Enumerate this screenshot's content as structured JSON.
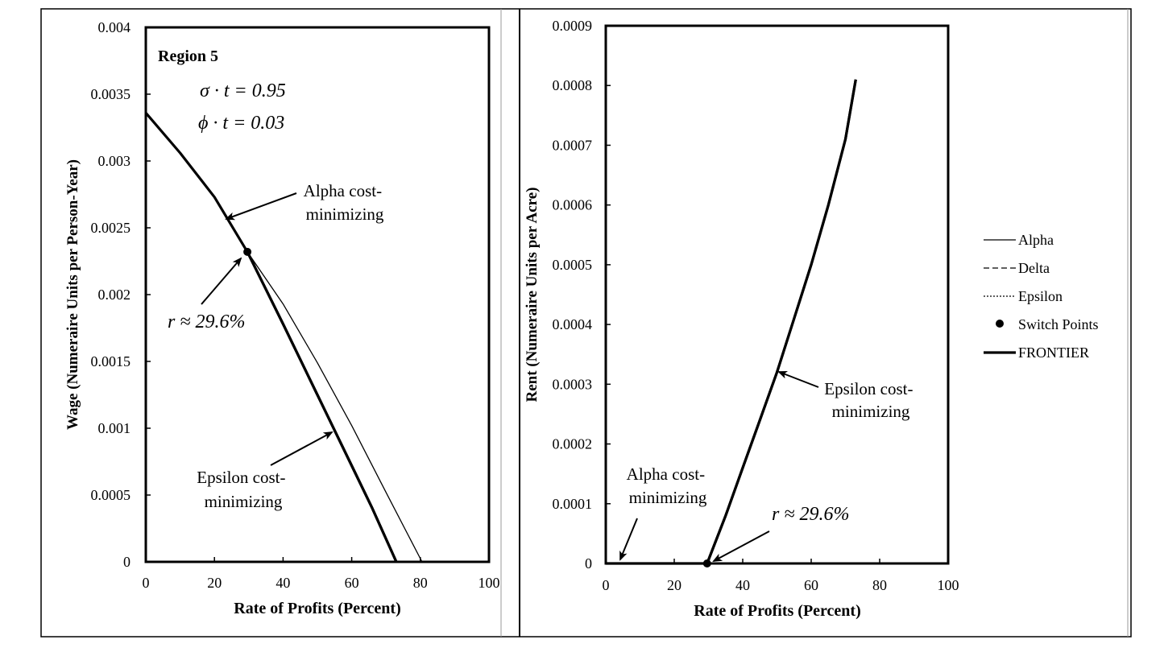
{
  "chart_data": [
    {
      "type": "line",
      "panel": "left",
      "xlabel": "Rate of Profits (Percent)",
      "ylabel": "Wage (Numeraire Units per Person-Year)",
      "xlim": [
        0,
        100
      ],
      "ylim": [
        0,
        0.004
      ],
      "x_ticks": [
        0,
        20,
        40,
        60,
        80,
        100
      ],
      "x_tick_labels": [
        "0",
        "20",
        "40",
        "60",
        "80",
        "100"
      ],
      "y_ticks": [
        0,
        0.0005,
        0.001,
        0.0015,
        0.002,
        0.0025,
        0.003,
        0.0035,
        0.004
      ],
      "y_tick_labels": [
        "0",
        "0.0005",
        "0.001",
        "0.0015",
        "0.002",
        "0.0025",
        "0.003",
        "0.0035",
        "0.004"
      ],
      "grid": false,
      "series": [
        {
          "name": "Alpha",
          "style": "thin-solid",
          "x": [
            0,
            10,
            20,
            29.6,
            40,
            50,
            60,
            70,
            80.5
          ],
          "y": [
            0.00336,
            0.00306,
            0.00273,
            0.00232,
            0.00193,
            0.00149,
            0.00102,
            0.00052,
            0
          ]
        },
        {
          "name": "Epsilon",
          "style": "thick-solid",
          "x": [
            29.6,
            40,
            50,
            60,
            66,
            73
          ],
          "y": [
            0.00232,
            0.00178,
            0.00125,
            0.00072,
            0.0004,
            0
          ]
        },
        {
          "name": "FRONTIER",
          "style": "thick-solid",
          "x": [
            0,
            10,
            20,
            29.6,
            40,
            50,
            60,
            66,
            73
          ],
          "y": [
            0.00336,
            0.00306,
            0.00273,
            0.00232,
            0.00178,
            0.00125,
            0.00072,
            0.0004,
            0
          ]
        }
      ],
      "switch_points": [
        {
          "x": 29.6,
          "y": 0.00232
        }
      ],
      "annotations": [
        {
          "text": "Region 5",
          "bold": true
        },
        {
          "text": "σ · t = 0.95"
        },
        {
          "text": "ϕ · t = 0.03"
        },
        {
          "text": "Alpha cost-\nminimizing",
          "arrow_to": {
            "x": 23,
            "y": 0.00257
          }
        },
        {
          "text": "r ≈ 29.6%",
          "arrow_to": {
            "x": 29.6,
            "y": 0.00232
          }
        },
        {
          "text": "Epsilon cost-\nminimizing",
          "arrow_to": {
            "x": 55.5,
            "y": 0.00101
          }
        }
      ]
    },
    {
      "type": "line",
      "panel": "right",
      "xlabel": "Rate of Profits (Percent)",
      "ylabel": "Rent (Numeraire Units per Acre)",
      "xlim": [
        0,
        100
      ],
      "ylim": [
        0,
        0.0009
      ],
      "x_ticks": [
        0,
        20,
        40,
        60,
        80,
        100
      ],
      "x_tick_labels": [
        "0",
        "20",
        "40",
        "60",
        "80",
        "100"
      ],
      "y_ticks": [
        0,
        0.0001,
        0.0002,
        0.0003,
        0.0004,
        0.0005,
        0.0006,
        0.0007,
        0.0008,
        0.0009
      ],
      "y_tick_labels": [
        "0",
        "0.0001",
        "0.0002",
        "0.0003",
        "0.0004",
        "0.0005",
        "0.0006",
        "0.0007",
        "0.0008",
        "0.0009"
      ],
      "grid": false,
      "legend_position": "right",
      "series": [
        {
          "name": "Alpha",
          "style": "thin-solid",
          "x": [
            0,
            29.6
          ],
          "y": [
            0,
            0
          ]
        },
        {
          "name": "Epsilon",
          "style": "thick-solid",
          "x": [
            29.6,
            35,
            40,
            45,
            50,
            55,
            60,
            65,
            70,
            73
          ],
          "y": [
            0,
            8e-05,
            0.00016,
            0.00024,
            0.00032,
            0.00041,
            0.0005,
            0.0006,
            0.00071,
            0.00081
          ]
        },
        {
          "name": "FRONTIER",
          "style": "thick-solid",
          "x": [
            0,
            29.6,
            35,
            40,
            45,
            50,
            55,
            60,
            65,
            70,
            73
          ],
          "y": [
            0,
            0,
            8e-05,
            0.00016,
            0.00024,
            0.00032,
            0.00041,
            0.0005,
            0.0006,
            0.00071,
            0.00081
          ]
        }
      ],
      "switch_points": [
        {
          "x": 29.6,
          "y": 0
        }
      ],
      "annotations": [
        {
          "text": "Alpha cost-\nminimizing",
          "arrow_to": {
            "x": 4,
            "y": 0
          }
        },
        {
          "text": "r ≈ 29.6%",
          "arrow_to": {
            "x": 31,
            "y": 0
          }
        },
        {
          "text": "Epsilon cost-\nminimizing",
          "arrow_to": {
            "x": 50,
            "y": 0.00032
          }
        }
      ]
    }
  ],
  "legend": {
    "items": [
      {
        "label": "Alpha",
        "style": "thin-solid"
      },
      {
        "label": "Delta",
        "style": "dashed"
      },
      {
        "label": "Epsilon",
        "style": "dotted"
      },
      {
        "label": "Switch Points",
        "style": "marker"
      },
      {
        "label": "FRONTIER",
        "style": "thick-solid"
      }
    ]
  },
  "colors": {
    "line": "#000000",
    "background": "#ffffff",
    "frame": "#000000"
  }
}
